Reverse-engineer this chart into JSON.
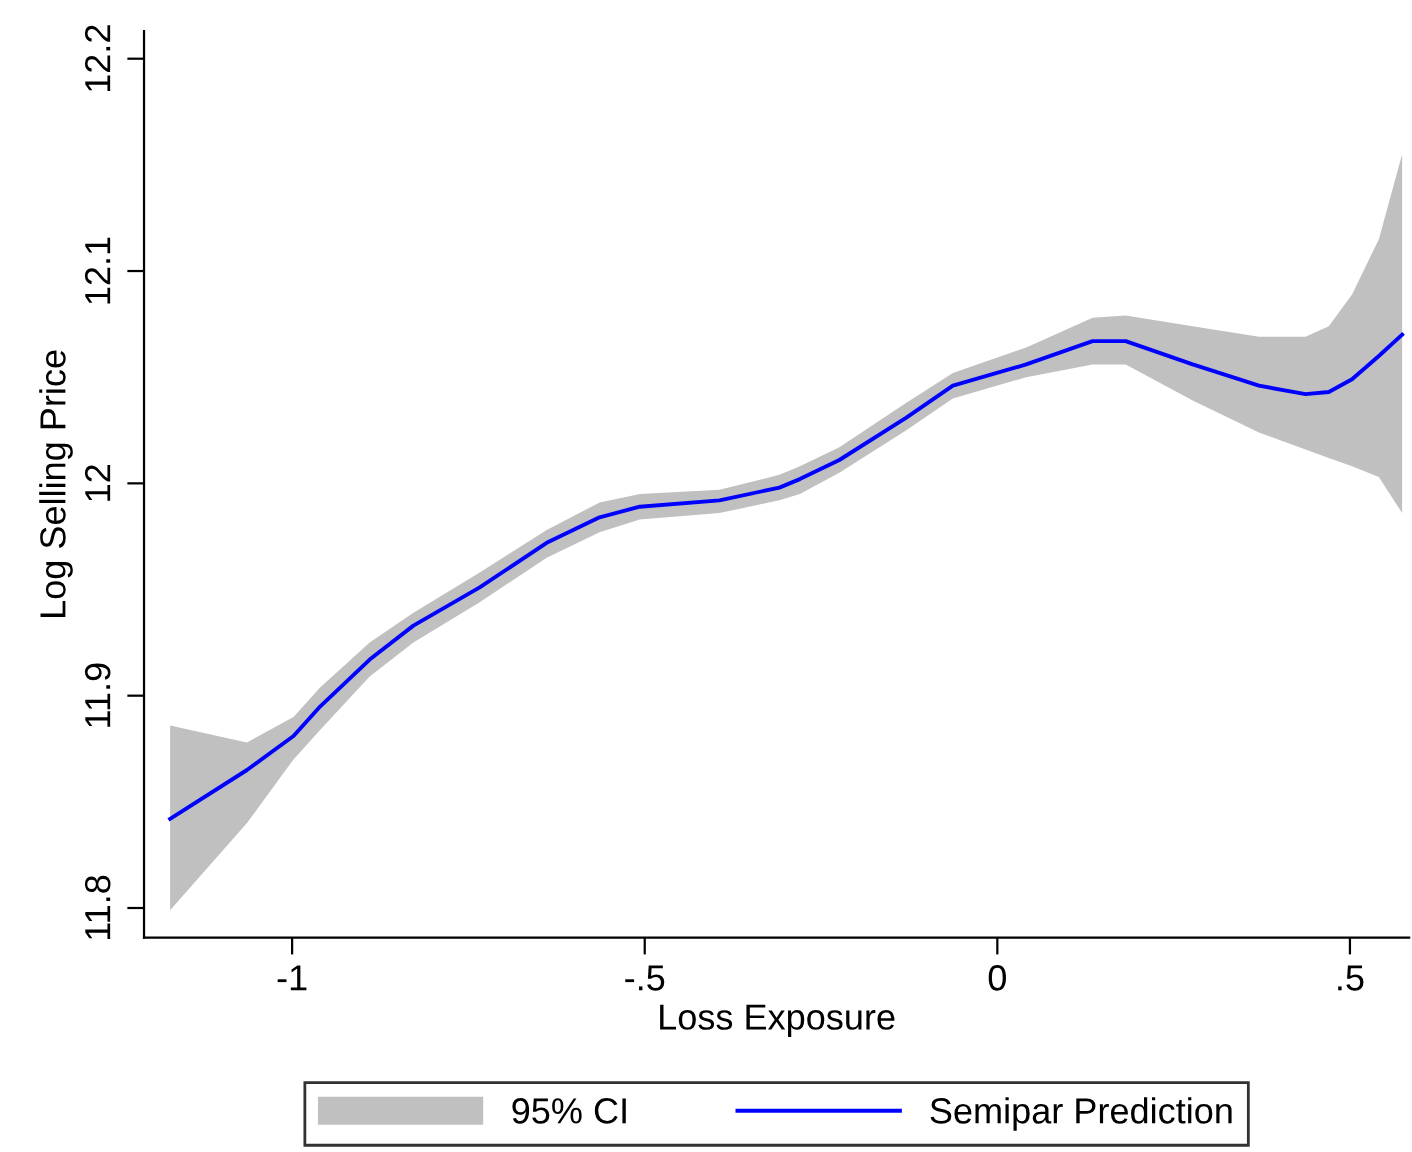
{
  "chart_data": {
    "type": "line",
    "xlabel": "Loss Exposure",
    "ylabel": "Log Selling Price",
    "x": [
      -1.173,
      -1.064,
      -0.998,
      -0.96,
      -0.89,
      -0.828,
      -0.734,
      -0.639,
      -0.564,
      -0.507,
      -0.394,
      -0.309,
      -0.28,
      -0.224,
      -0.129,
      -0.063,
      0.041,
      0.135,
      0.182,
      0.277,
      0.371,
      0.437,
      0.47,
      0.503,
      0.541,
      0.574
    ],
    "series": [
      {
        "name": "95% CI",
        "color": "#c0c0c0",
        "values": [
          null,
          null,
          null,
          null,
          null,
          null,
          null,
          null,
          null,
          null,
          null,
          null,
          null,
          null,
          null,
          null,
          null,
          null,
          null,
          null,
          null,
          null,
          null,
          null,
          null,
          null
        ],
        "lower": [
          11.799,
          11.84,
          11.87,
          11.884,
          11.909,
          11.925,
          11.944,
          11.965,
          11.977,
          11.983,
          11.986,
          11.992,
          11.995,
          12.005,
          12.025,
          12.04,
          12.05,
          12.056,
          12.056,
          12.039,
          12.024,
          12.016,
          12.012,
          12.008,
          12.003,
          11.986
        ],
        "upper": [
          11.886,
          11.878,
          11.89,
          11.904,
          11.925,
          11.939,
          11.958,
          11.978,
          11.991,
          11.995,
          11.997,
          12.004,
          12.008,
          12.017,
          12.038,
          12.052,
          12.064,
          12.078,
          12.079,
          12.074,
          12.069,
          12.069,
          12.074,
          12.089,
          12.115,
          12.155
        ]
      },
      {
        "name": "Semipar Prediction",
        "color": "#0000ff",
        "values": [
          11.842,
          11.865,
          11.881,
          11.895,
          11.917,
          11.933,
          11.951,
          11.972,
          11.984,
          11.989,
          11.992,
          11.998,
          12.002,
          12.011,
          12.031,
          12.046,
          12.056,
          12.067,
          12.067,
          12.056,
          12.046,
          12.042,
          12.043,
          12.049,
          12.06,
          12.07
        ]
      }
    ],
    "xlim": [
      -1.21,
      0.584
    ],
    "ylim": [
      11.786,
      12.213
    ],
    "xticks": [
      {
        "value": -1,
        "label": "-1"
      },
      {
        "value": -0.5,
        "label": "-.5"
      },
      {
        "value": 0,
        "label": "0"
      },
      {
        "value": 0.5,
        "label": ".5"
      }
    ],
    "yticks": [
      {
        "value": 11.8,
        "label": "11.8"
      },
      {
        "value": 11.9,
        "label": "11.9"
      },
      {
        "value": 12,
        "label": "12"
      },
      {
        "value": 12.1,
        "label": "12.1"
      },
      {
        "value": 12.2,
        "label": "12.2"
      }
    ],
    "grid": false,
    "legend": "bottom",
    "marker": "none",
    "line_style": "solid"
  }
}
